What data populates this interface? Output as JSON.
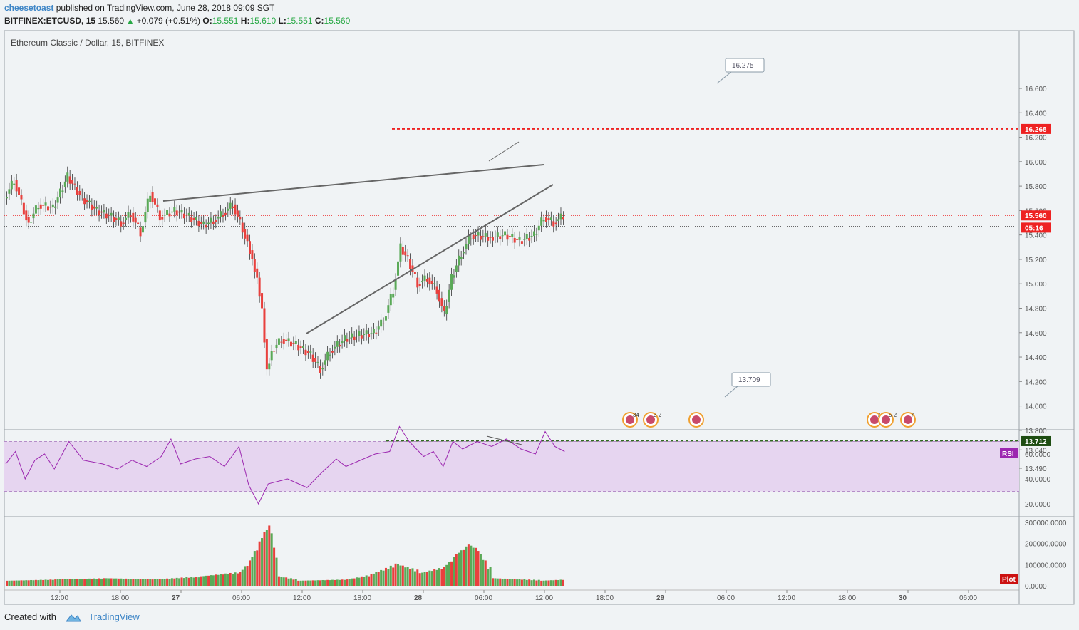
{
  "header": {
    "author": "cheesetoast",
    "published_text": "published on TradingView.com, June 28, 2018 09:09 SGT",
    "symbol": "BITFINEX:ETCUSD, 15",
    "last": "15.560",
    "change": "+0.079 (+0.51%)",
    "o_label": "O:",
    "o_value": "15.551",
    "h_label": "H:",
    "h_value": "15.610",
    "l_label": "L:",
    "l_value": "15.551",
    "c_label": "C:",
    "c_value": "15.560"
  },
  "footer": {
    "created_with": "Created with",
    "brand": "TradingView"
  },
  "colors": {
    "up": "#5aa957",
    "down": "#e8403d",
    "rsi": "#9c27b0",
    "rsi_band": "#e6d5f0",
    "resistance": "#ee2222",
    "support": "#336622",
    "trend": "#666666",
    "background": "#f0f3f5"
  },
  "chart_data": {
    "type": "candlestick",
    "title": "Ethereum Classic / Dollar, 15, BITFINEX",
    "y_ticks": [
      "16.600",
      "16.400",
      "16.200",
      "16.000",
      "15.800",
      "15.600",
      "15.400",
      "15.200",
      "15.000",
      "14.800",
      "14.600",
      "14.400",
      "14.200",
      "14.000",
      "13.800",
      "13.640",
      "13.490"
    ],
    "price_labels": [
      {
        "text": "16.268",
        "value": 16.268,
        "color": "#ee2222"
      },
      {
        "text": "15.560",
        "value": 15.56,
        "color": "#ee2222"
      },
      {
        "text": "05:16",
        "value": 15.46,
        "color": "#ee2222"
      },
      {
        "text": "13.712",
        "value": 13.712,
        "color": "#1e4d12"
      }
    ],
    "callouts": [
      {
        "text": "16.275",
        "value": 16.275
      },
      {
        "text": "13.709",
        "value": 13.709
      }
    ],
    "horizontal_lines": [
      {
        "value": 16.268,
        "style": "dashed",
        "color": "#ee2222"
      },
      {
        "value": 13.712,
        "style": "dashed",
        "color": "#336622"
      },
      {
        "value": 15.56,
        "style": "dotted",
        "color": "#ee2222"
      },
      {
        "value": 15.47,
        "style": "dotted",
        "color": "#555555"
      }
    ],
    "x_ticks": [
      "12:00",
      "18:00",
      "27",
      "06:00",
      "12:00",
      "18:00",
      "28",
      "06:00",
      "12:00",
      "18:00",
      "29",
      "06:00",
      "12:00",
      "18:00",
      "30",
      "06:00"
    ],
    "price_path": [
      [
        0,
        15.7
      ],
      [
        4,
        15.85
      ],
      [
        8,
        15.6
      ],
      [
        10,
        15.5
      ],
      [
        14,
        15.65
      ],
      [
        20,
        15.62
      ],
      [
        26,
        15.88
      ],
      [
        32,
        15.7
      ],
      [
        38,
        15.6
      ],
      [
        44,
        15.55
      ],
      [
        48,
        15.5
      ],
      [
        52,
        15.58
      ],
      [
        56,
        15.42
      ],
      [
        60,
        15.75
      ],
      [
        64,
        15.55
      ],
      [
        70,
        15.6
      ],
      [
        76,
        15.55
      ],
      [
        82,
        15.48
      ],
      [
        86,
        15.52
      ],
      [
        90,
        15.58
      ],
      [
        94,
        15.65
      ],
      [
        98,
        15.45
      ],
      [
        100,
        15.35
      ],
      [
        102,
        15.2
      ],
      [
        104,
        15.05
      ],
      [
        106,
        14.8
      ],
      [
        108,
        14.3
      ],
      [
        110,
        14.45
      ],
      [
        114,
        14.55
      ],
      [
        120,
        14.5
      ],
      [
        126,
        14.42
      ],
      [
        130,
        14.3
      ],
      [
        134,
        14.45
      ],
      [
        140,
        14.55
      ],
      [
        146,
        14.58
      ],
      [
        152,
        14.6
      ],
      [
        156,
        14.7
      ],
      [
        160,
        14.95
      ],
      [
        163,
        15.3
      ],
      [
        166,
        15.2
      ],
      [
        170,
        15.0
      ],
      [
        174,
        15.05
      ],
      [
        178,
        14.95
      ],
      [
        181,
        14.75
      ],
      [
        184,
        15.05
      ],
      [
        188,
        15.25
      ],
      [
        192,
        15.4
      ],
      [
        200,
        15.38
      ],
      [
        206,
        15.4
      ],
      [
        212,
        15.35
      ],
      [
        218,
        15.4
      ],
      [
        222,
        15.55
      ],
      [
        226,
        15.5
      ],
      [
        230,
        15.56
      ]
    ],
    "volume_path": [
      [
        0,
        0.08
      ],
      [
        20,
        0.1
      ],
      [
        40,
        0.12
      ],
      [
        60,
        0.1
      ],
      [
        80,
        0.15
      ],
      [
        96,
        0.22
      ],
      [
        100,
        0.4
      ],
      [
        104,
        0.7
      ],
      [
        106,
        0.85
      ],
      [
        108,
        0.95
      ],
      [
        110,
        0.6
      ],
      [
        112,
        0.15
      ],
      [
        120,
        0.08
      ],
      [
        140,
        0.1
      ],
      [
        150,
        0.18
      ],
      [
        160,
        0.35
      ],
      [
        170,
        0.2
      ],
      [
        180,
        0.3
      ],
      [
        185,
        0.5
      ],
      [
        190,
        0.65
      ],
      [
        194,
        0.55
      ],
      [
        200,
        0.12
      ],
      [
        220,
        0.08
      ],
      [
        230,
        0.1
      ]
    ],
    "rsi_path": [
      [
        0,
        52
      ],
      [
        4,
        62
      ],
      [
        8,
        40
      ],
      [
        12,
        55
      ],
      [
        16,
        60
      ],
      [
        20,
        48
      ],
      [
        26,
        70
      ],
      [
        32,
        55
      ],
      [
        40,
        52
      ],
      [
        46,
        48
      ],
      [
        52,
        55
      ],
      [
        58,
        50
      ],
      [
        64,
        58
      ],
      [
        68,
        72
      ],
      [
        72,
        52
      ],
      [
        78,
        56
      ],
      [
        84,
        58
      ],
      [
        90,
        50
      ],
      [
        96,
        66
      ],
      [
        100,
        35
      ],
      [
        104,
        20
      ],
      [
        108,
        36
      ],
      [
        116,
        40
      ],
      [
        124,
        33
      ],
      [
        130,
        45
      ],
      [
        136,
        56
      ],
      [
        140,
        50
      ],
      [
        146,
        55
      ],
      [
        152,
        60
      ],
      [
        158,
        62
      ],
      [
        162,
        82
      ],
      [
        166,
        70
      ],
      [
        172,
        58
      ],
      [
        176,
        62
      ],
      [
        180,
        50
      ],
      [
        184,
        70
      ],
      [
        188,
        64
      ],
      [
        194,
        70
      ],
      [
        200,
        66
      ],
      [
        206,
        72
      ],
      [
        212,
        64
      ],
      [
        218,
        60
      ],
      [
        222,
        78
      ],
      [
        226,
        66
      ],
      [
        230,
        62
      ]
    ],
    "ranges": {
      "price": [
        13.41,
        16.72
      ],
      "rsi": [
        10,
        90
      ],
      "volume": [
        0,
        300000
      ],
      "x": [
        0,
        420
      ]
    },
    "rsi": {
      "label": "RSI",
      "ticks": [
        "60.0000",
        "40.0000",
        "20.0000"
      ]
    },
    "volume": {
      "label": "Plot",
      "ticks": [
        "300000.0000",
        "200000.0000",
        "100000.0000",
        "0.0000"
      ]
    },
    "events": [
      "34",
      "3 2",
      "",
      "7",
      "5 2",
      "7"
    ]
  }
}
